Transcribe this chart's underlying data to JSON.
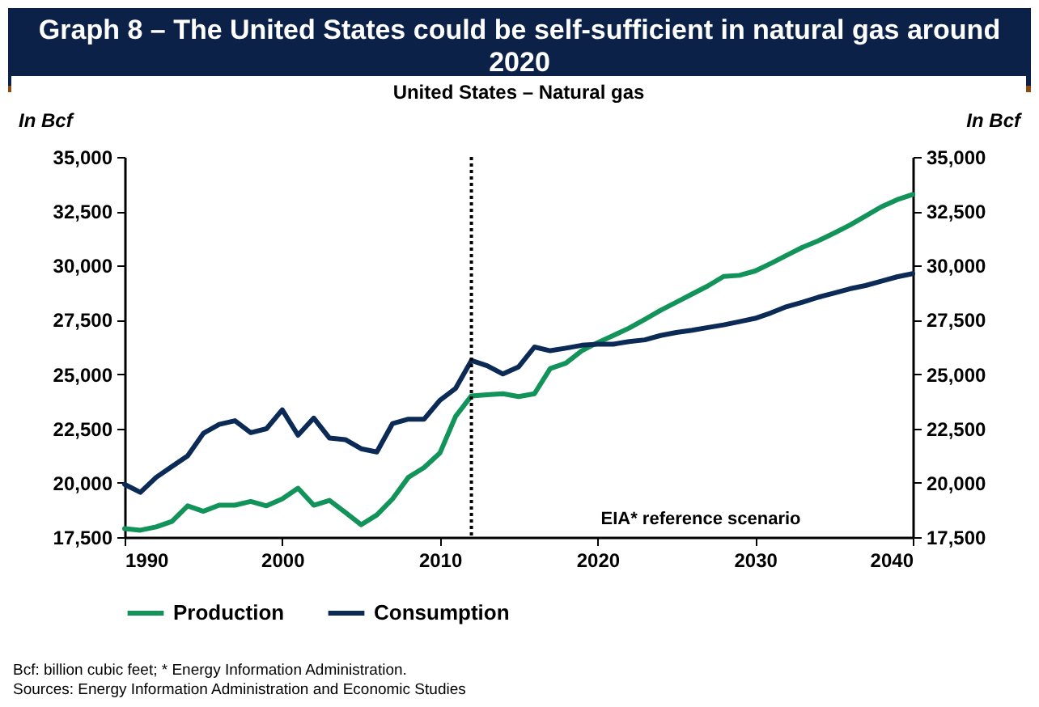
{
  "chart_data": {
    "type": "line",
    "title": "Graph 8 – The United States could be self-sufficient in natural gas around 2020",
    "subtitle": "United States – Natural gas",
    "ylabel": "In Bcf",
    "y2label": "In Bcf",
    "x": [
      1990,
      1991,
      1992,
      1993,
      1994,
      1995,
      1996,
      1997,
      1998,
      1999,
      2000,
      2001,
      2002,
      2003,
      2004,
      2005,
      2006,
      2007,
      2008,
      2009,
      2010,
      2011,
      2012,
      2013,
      2014,
      2015,
      2016,
      2017,
      2018,
      2019,
      2020,
      2021,
      2022,
      2023,
      2024,
      2025,
      2026,
      2027,
      2028,
      2029,
      2030,
      2031,
      2032,
      2033,
      2034,
      2035,
      2036,
      2037,
      2038,
      2039,
      2040
    ],
    "series": [
      {
        "name": "Production",
        "color": "#12935a",
        "values": [
          17890,
          17820,
          17970,
          18220,
          18940,
          18690,
          18970,
          18970,
          19140,
          18940,
          19260,
          19750,
          18970,
          19190,
          18640,
          18070,
          18520,
          19260,
          20250,
          20700,
          21370,
          23060,
          24000,
          24050,
          24100,
          23970,
          24100,
          25260,
          25510,
          26080,
          26450,
          26780,
          27120,
          27520,
          27940,
          28310,
          28690,
          29060,
          29500,
          29550,
          29750,
          30100,
          30470,
          30840,
          31140,
          31490,
          31860,
          32280,
          32700,
          33030,
          33270
        ]
      },
      {
        "name": "Consumption",
        "color": "#0b2a55",
        "values": [
          19930,
          19560,
          20250,
          20750,
          21240,
          22280,
          22690,
          22860,
          22310,
          22490,
          23360,
          22190,
          22980,
          22060,
          21990,
          21570,
          21420,
          22730,
          22930,
          22930,
          23800,
          24350,
          25630,
          25390,
          25010,
          25340,
          26250,
          26080,
          26200,
          26330,
          26380,
          26380,
          26500,
          26580,
          26780,
          26920,
          27020,
          27150,
          27270,
          27420,
          27570,
          27820,
          28110,
          28310,
          28540,
          28730,
          28930,
          29080,
          29280,
          29480,
          29630
        ]
      }
    ],
    "xlim": [
      1990,
      2040
    ],
    "xticks": [
      1990,
      2000,
      2010,
      2020,
      2030,
      2040
    ],
    "ylim": [
      17500,
      35000
    ],
    "yticks": [
      {
        "value": 17500,
        "label": "17,500"
      },
      {
        "value": 20000,
        "label": "20,000"
      },
      {
        "value": 22500,
        "label": "22,500"
      },
      {
        "value": 25000,
        "label": "25,000"
      },
      {
        "value": 27500,
        "label": "27,500"
      },
      {
        "value": 30000,
        "label": "30,000"
      },
      {
        "value": 32500,
        "label": "32,500"
      },
      {
        "value": 35000,
        "label": "35,000"
      }
    ],
    "y2lim": [
      17500,
      35000
    ],
    "y2ticks": [
      {
        "value": 17500,
        "label": "17,500"
      },
      {
        "value": 20000,
        "label": "20,000"
      },
      {
        "value": 22500,
        "label": "22,500"
      },
      {
        "value": 25000,
        "label": "25,000"
      },
      {
        "value": 27500,
        "label": "27,500"
      },
      {
        "value": 30000,
        "label": "30,000"
      },
      {
        "value": 32500,
        "label": "32,500"
      },
      {
        "value": 35000,
        "label": "35,000"
      }
    ],
    "ref_lines": [
      {
        "axis": "x",
        "value": 2012,
        "color": "#000000",
        "line_style": "dotted"
      }
    ],
    "annotations": [
      "EIA* reference scenario",
      "Bcf: billion cubic feet; * Energy Information Administration.",
      "Sources: Energy Information Administration and Economic Studies"
    ],
    "legend": "bottom",
    "grid": false
  }
}
